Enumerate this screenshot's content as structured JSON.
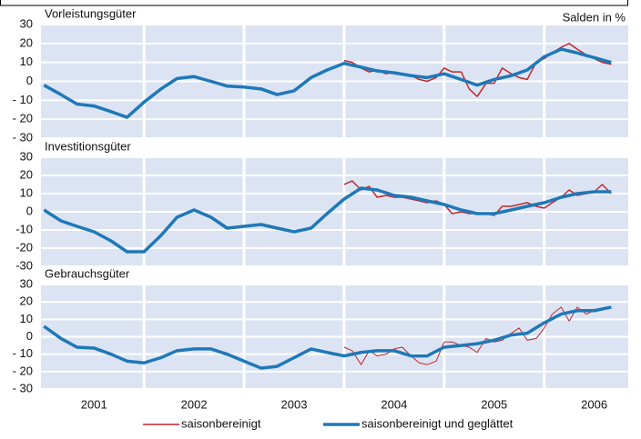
{
  "chart_data": [
    {
      "type": "line",
      "title": "Vorleistungsgüter",
      "annotation": "Salden in %",
      "xlim": [
        2000.97,
        2006.84
      ],
      "ylim": [
        -30,
        30
      ],
      "yticks": [
        {
          "value": -30,
          "label": "- 30"
        },
        {
          "value": -20,
          "label": "- 20"
        },
        {
          "value": -10,
          "label": "- 10"
        },
        0,
        10,
        20,
        30
      ],
      "grid": true,
      "legend": "bottom",
      "series": [
        {
          "name": "saisonbereinigt",
          "color": "#c0272d",
          "width": 1.5,
          "x": [
            2004.0,
            2004.08,
            2004.17,
            2004.25,
            2004.33,
            2004.42,
            2004.5,
            2004.58,
            2004.67,
            2004.75,
            2004.83,
            2004.92,
            2005.0,
            2005.08,
            2005.17,
            2005.25,
            2005.33,
            2005.42,
            2005.5,
            2005.58,
            2005.67,
            2005.75,
            2005.83,
            2005.92,
            2006.0,
            2006.08,
            2006.17,
            2006.25,
            2006.33,
            2006.42,
            2006.5,
            2006.58,
            2006.67
          ],
          "values": [
            11,
            10,
            7,
            5,
            6,
            4,
            5,
            4,
            3,
            1,
            0,
            2,
            7,
            5,
            5,
            -4,
            -8,
            -1,
            -1,
            7,
            4,
            2,
            1,
            10,
            12,
            15,
            18,
            20,
            17,
            14,
            12,
            10,
            9
          ]
        },
        {
          "name": "saisonbereinigt und geglättet",
          "color": "#1f78b8",
          "width": 3.5,
          "x": [
            2001.0,
            2001.17,
            2001.33,
            2001.5,
            2001.67,
            2001.83,
            2002.0,
            2002.17,
            2002.33,
            2002.5,
            2002.67,
            2002.83,
            2003.0,
            2003.17,
            2003.33,
            2003.5,
            2003.67,
            2003.83,
            2004.0,
            2004.17,
            2004.33,
            2004.5,
            2004.67,
            2004.83,
            2005.0,
            2005.17,
            2005.33,
            2005.5,
            2005.67,
            2005.83,
            2006.0,
            2006.17,
            2006.33,
            2006.5,
            2006.67
          ],
          "values": [
            -2,
            -7,
            -12,
            -13,
            -16,
            -19,
            -11,
            -4,
            1.5,
            2.5,
            0,
            -2.5,
            -3,
            -4,
            -7,
            -5,
            2,
            6,
            9.5,
            7.5,
            5.5,
            4.5,
            3,
            2,
            4,
            1,
            -2,
            1,
            3,
            6,
            13,
            17,
            15,
            12.5,
            10
          ]
        }
      ]
    },
    {
      "type": "line",
      "title": "Investitionsgüter",
      "xlim": [
        2000.97,
        2006.84
      ],
      "ylim": [
        -30,
        30
      ],
      "yticks": [
        -30,
        -20,
        -10,
        0,
        10,
        20,
        30
      ],
      "grid": true,
      "series": [
        {
          "color": "#c0272d",
          "width": 1.5,
          "x": [
            2004.0,
            2004.08,
            2004.17,
            2004.25,
            2004.33,
            2004.42,
            2004.5,
            2004.58,
            2004.67,
            2004.75,
            2004.83,
            2004.92,
            2005.0,
            2005.08,
            2005.17,
            2005.25,
            2005.33,
            2005.42,
            2005.5,
            2005.58,
            2005.67,
            2005.75,
            2005.83,
            2005.92,
            2006.0,
            2006.08,
            2006.17,
            2006.25,
            2006.33,
            2006.42,
            2006.5,
            2006.58,
            2006.67
          ],
          "values": [
            15,
            17,
            12,
            14,
            8,
            9,
            8,
            8,
            7,
            6,
            5,
            6,
            4,
            -1,
            0,
            -1,
            -1,
            -1,
            -2,
            3,
            3,
            4,
            5,
            3,
            2,
            5,
            8,
            12,
            9,
            10,
            11,
            15,
            10
          ]
        },
        {
          "color": "#1f78b8",
          "width": 3.5,
          "x": [
            2001.0,
            2001.17,
            2001.33,
            2001.5,
            2001.67,
            2001.83,
            2002.0,
            2002.17,
            2002.33,
            2002.5,
            2002.67,
            2002.83,
            2003.0,
            2003.17,
            2003.33,
            2003.5,
            2003.67,
            2003.83,
            2004.0,
            2004.17,
            2004.33,
            2004.5,
            2004.67,
            2004.83,
            2005.0,
            2005.17,
            2005.33,
            2005.5,
            2005.67,
            2005.83,
            2006.0,
            2006.17,
            2006.33,
            2006.5,
            2006.67
          ],
          "values": [
            1,
            -5,
            -8,
            -11,
            -16,
            -22,
            -22,
            -13,
            -3,
            1,
            -3,
            -9,
            -8,
            -7,
            -9,
            -11,
            -9,
            -1,
            7,
            13,
            12,
            9,
            8,
            6,
            4,
            1,
            -1,
            -1,
            1,
            3,
            5,
            8,
            10,
            11,
            11
          ]
        }
      ]
    },
    {
      "type": "line",
      "title": "Gebrauchsgüter",
      "xlim": [
        2000.97,
        2006.84
      ],
      "ylim": [
        -30,
        30
      ],
      "yticks": [
        {
          "value": -30,
          "label": "- 30"
        },
        {
          "value": -20,
          "label": "- 20"
        },
        {
          "value": -10,
          "label": "- 10"
        },
        0,
        10,
        20,
        30
      ],
      "xticks": [
        {
          "value": 2001.5,
          "label": "2001"
        },
        {
          "value": 2002.5,
          "label": "2002"
        },
        {
          "value": 2003.5,
          "label": "2003"
        },
        {
          "value": 2004.5,
          "label": "2004"
        },
        {
          "value": 2005.5,
          "label": "2005"
        },
        {
          "value": 2006.5,
          "label": "2006"
        }
      ],
      "grid": true,
      "series": [
        {
          "color": "#c0272d",
          "width": 1,
          "x": [
            2004.0,
            2004.08,
            2004.17,
            2004.25,
            2004.33,
            2004.42,
            2004.5,
            2004.58,
            2004.67,
            2004.75,
            2004.83,
            2004.92,
            2005.0,
            2005.08,
            2005.17,
            2005.25,
            2005.33,
            2005.42,
            2005.5,
            2005.58,
            2005.67,
            2005.75,
            2005.83,
            2005.92,
            2006.0,
            2006.08,
            2006.17,
            2006.25,
            2006.33,
            2006.42,
            2006.5,
            2006.58,
            2006.67
          ],
          "values": [
            -6,
            -8,
            -16,
            -8,
            -11,
            -10,
            -7,
            -6,
            -11,
            -15,
            -16,
            -14,
            -3,
            -3,
            -5,
            -6,
            -9,
            -1,
            -3,
            -2,
            2,
            5,
            -2,
            -1,
            5,
            13,
            17,
            9,
            17,
            13,
            15,
            16,
            17
          ]
        },
        {
          "color": "#1f78b8",
          "width": 3.5,
          "x": [
            2001.0,
            2001.17,
            2001.33,
            2001.5,
            2001.67,
            2001.83,
            2002.0,
            2002.17,
            2002.33,
            2002.5,
            2002.67,
            2002.83,
            2003.0,
            2003.17,
            2003.33,
            2003.5,
            2003.67,
            2003.83,
            2004.0,
            2004.17,
            2004.33,
            2004.5,
            2004.67,
            2004.83,
            2005.0,
            2005.17,
            2005.33,
            2005.5,
            2005.67,
            2005.83,
            2006.0,
            2006.17,
            2006.33,
            2006.5,
            2006.67
          ],
          "values": [
            6,
            -1,
            -6,
            -6.5,
            -10,
            -14,
            -15,
            -12,
            -8,
            -7,
            -7,
            -10,
            -14,
            -18,
            -17,
            -12,
            -7,
            -9,
            -11,
            -9,
            -8,
            -8,
            -11,
            -11,
            -6,
            -5,
            -4,
            -2,
            1,
            2,
            8,
            13,
            15,
            15,
            17
          ]
        }
      ]
    }
  ]
}
